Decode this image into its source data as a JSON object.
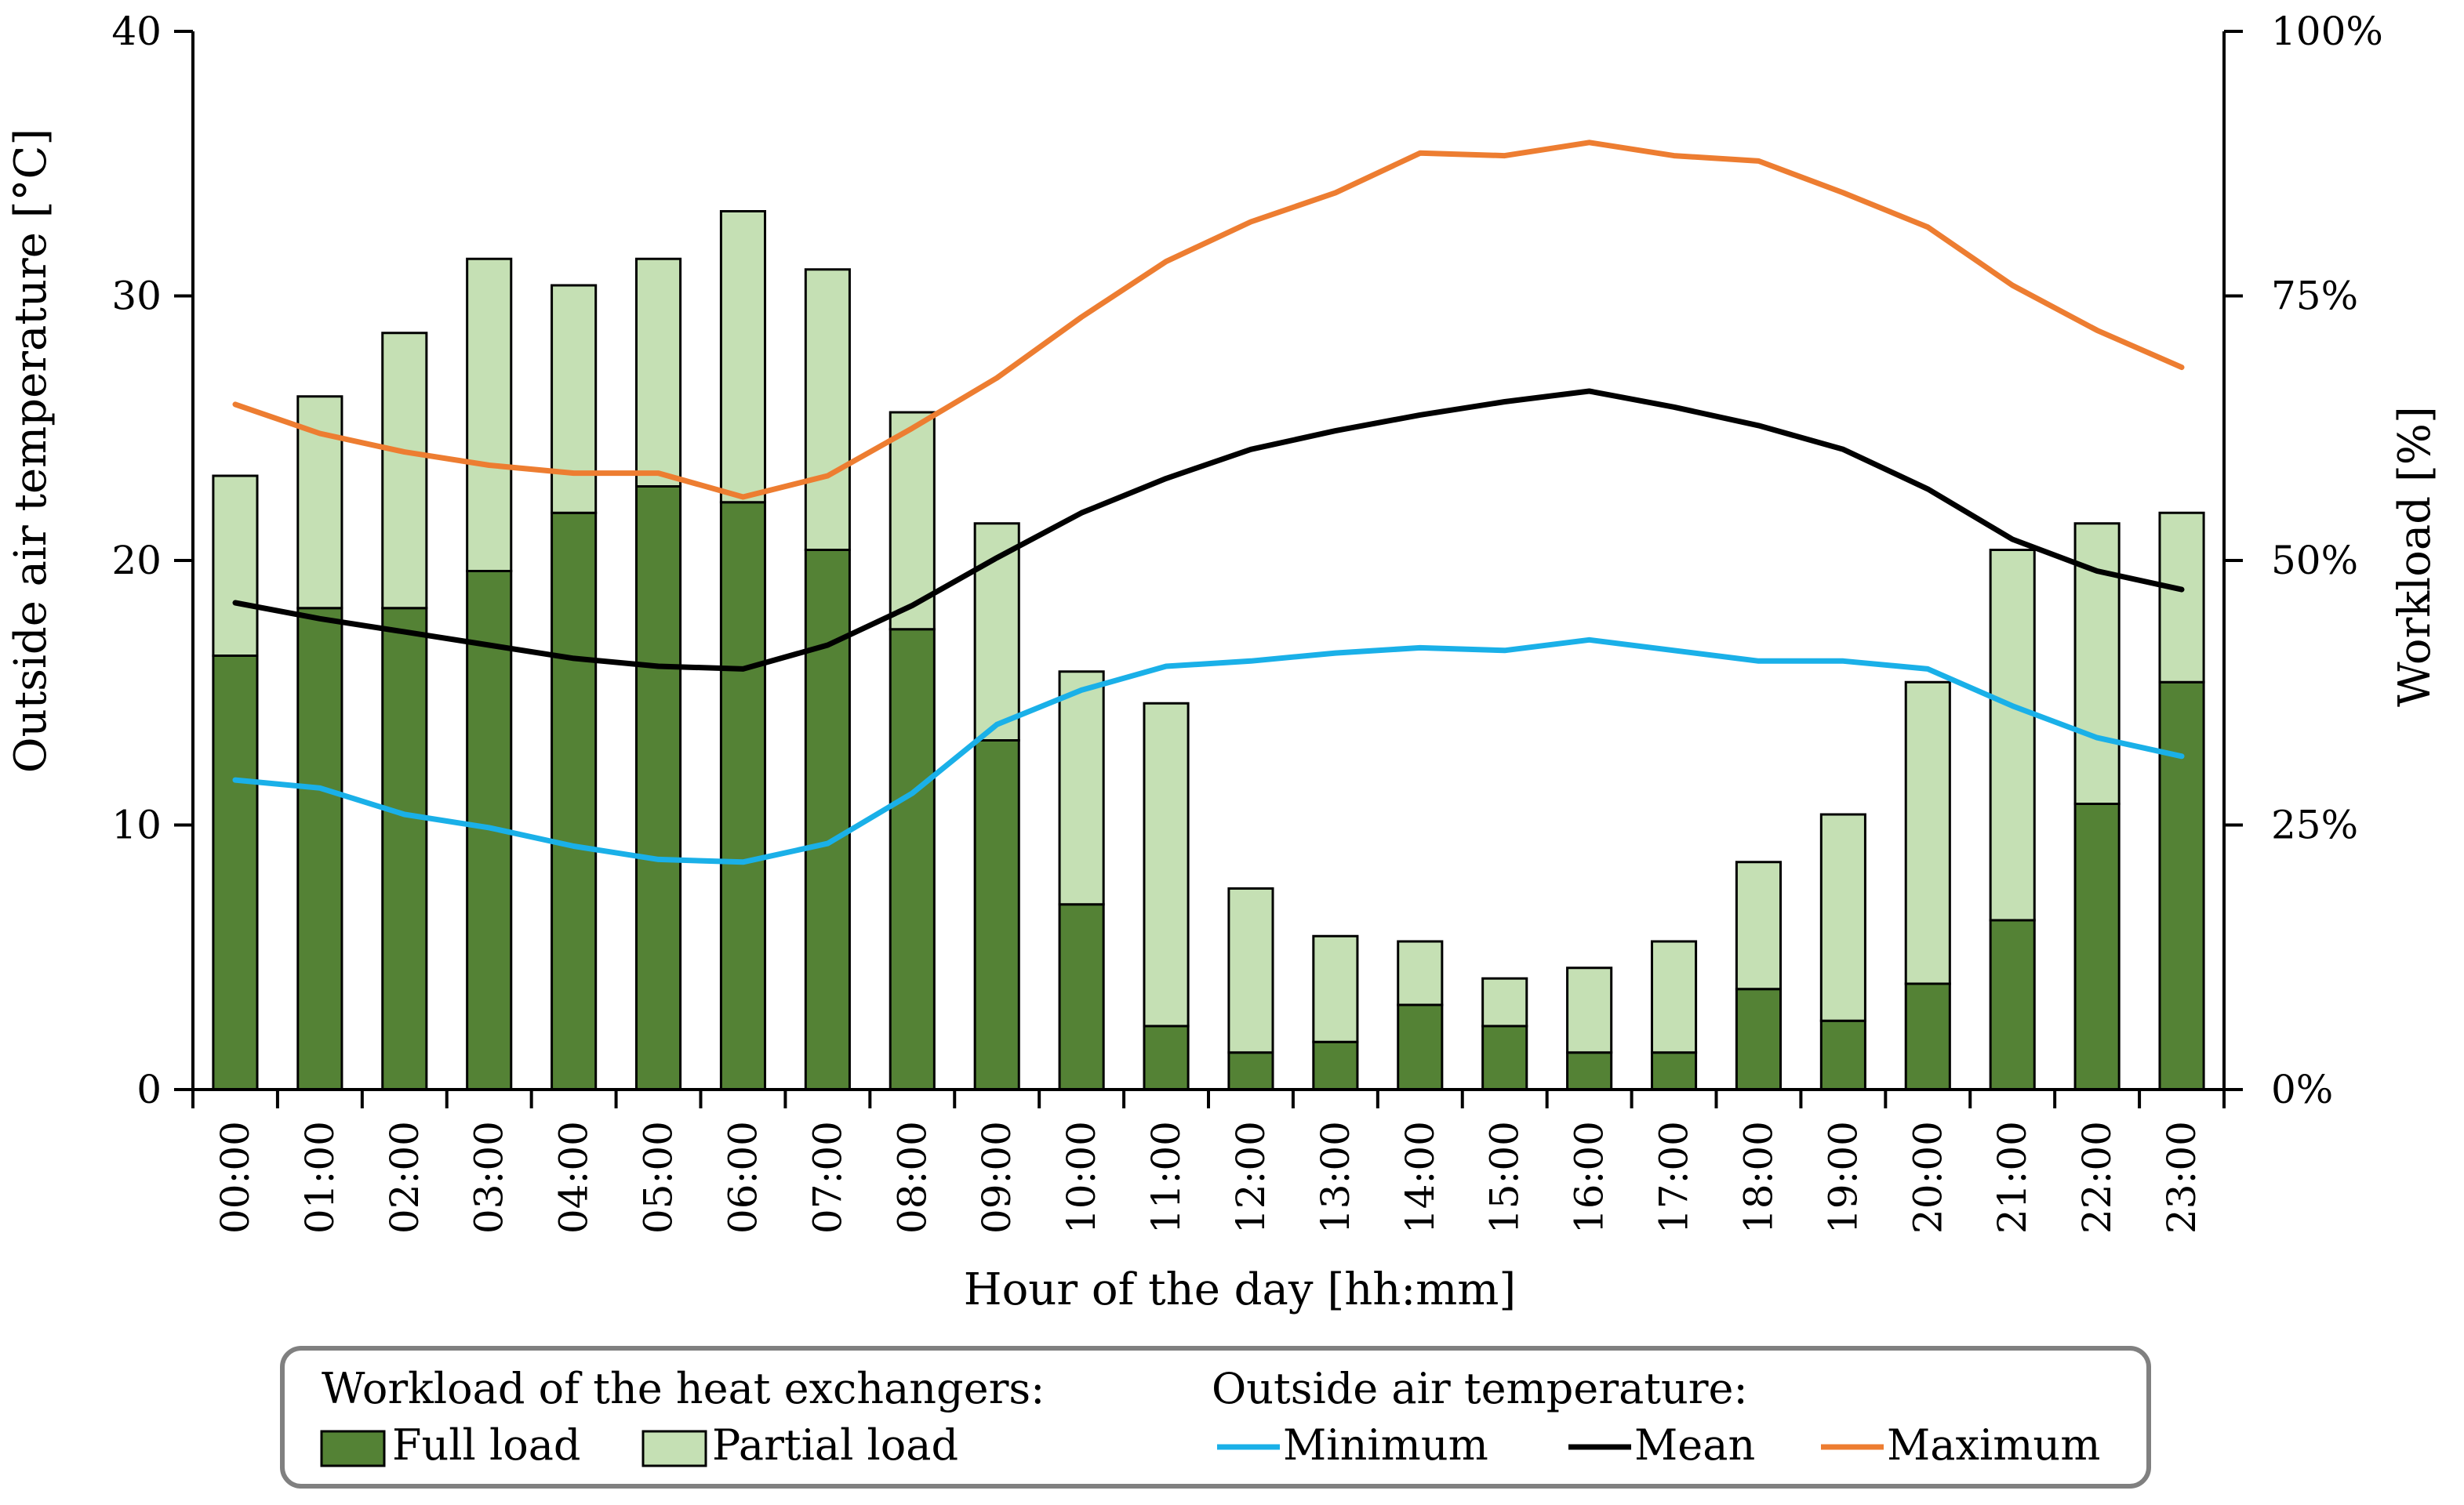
{
  "chart_data": {
    "type": "bar",
    "categories": [
      "00:00",
      "01:00",
      "02:00",
      "03:00",
      "04:00",
      "05:00",
      "06:00",
      "07:00",
      "08:00",
      "09:00",
      "10:00",
      "11:00",
      "12:00",
      "13:00",
      "14:00",
      "15:00",
      "16:00",
      "17:00",
      "18:00",
      "19:00",
      "20:00",
      "21:00",
      "22:00",
      "23:00"
    ],
    "xlabel": "Hour of the day [hh:mm]",
    "ylabel_left": "Outside  air  temperature [°C]",
    "ylabel_right": "Workload [%]",
    "ylim_left": [
      0,
      40
    ],
    "yticks_left": [
      "0",
      "10",
      "20",
      "30",
      "40"
    ],
    "ylim_right": [
      0,
      100
    ],
    "yticks_right": [
      "0%",
      "25%",
      "50%",
      "75%",
      "100%"
    ],
    "grid": false,
    "bars": {
      "axis": "right",
      "stacked": true,
      "series": [
        {
          "name": "Full load",
          "color": "#548235",
          "values": [
            41,
            45.5,
            45.5,
            49,
            54.5,
            57,
            55.5,
            51,
            43.5,
            33,
            17.5,
            6,
            3.5,
            4.5,
            8,
            6,
            3.5,
            3.5,
            9.5,
            6.5,
            10,
            16,
            27,
            38.5
          ]
        },
        {
          "name": "Partial load",
          "color": "#C5E0B4",
          "values": [
            17,
            20,
            26,
            29.5,
            21.5,
            21.5,
            27.5,
            26.5,
            20.5,
            20.5,
            22,
            30.5,
            15.5,
            10,
            6,
            4.5,
            8,
            10.5,
            12,
            19.5,
            28.5,
            35,
            26.5,
            16
          ]
        }
      ]
    },
    "lines": {
      "axis": "left",
      "series": [
        {
          "name": "Minimum",
          "color": "#1AB0E8",
          "values": [
            11.7,
            11.4,
            10.4,
            9.9,
            9.2,
            8.7,
            8.6,
            9.3,
            11.2,
            13.8,
            15.1,
            16.0,
            16.2,
            16.5,
            16.7,
            16.6,
            17.0,
            16.6,
            16.2,
            16.2,
            15.9,
            14.5,
            13.3,
            12.6
          ]
        },
        {
          "name": "Mean",
          "color": "#000000",
          "values": [
            18.4,
            17.8,
            17.3,
            16.8,
            16.3,
            16.0,
            15.9,
            16.8,
            18.3,
            20.1,
            21.8,
            23.1,
            24.2,
            24.9,
            25.5,
            26.0,
            26.4,
            25.8,
            25.1,
            24.2,
            22.7,
            20.8,
            19.6,
            18.9
          ]
        },
        {
          "name": "Maximum",
          "color": "#ED7D31",
          "values": [
            25.9,
            24.8,
            24.1,
            23.6,
            23.3,
            23.3,
            22.4,
            23.2,
            25.0,
            26.9,
            29.2,
            31.3,
            32.8,
            33.9,
            35.4,
            35.3,
            35.8,
            35.3,
            35.1,
            33.9,
            32.6,
            30.4,
            28.7,
            27.3
          ]
        }
      ]
    },
    "legend": {
      "position": "bottom",
      "group_bars_title": "Workload  of  the  heat exchangers:",
      "group_lines_title": "Outside  air  temperature:"
    }
  }
}
